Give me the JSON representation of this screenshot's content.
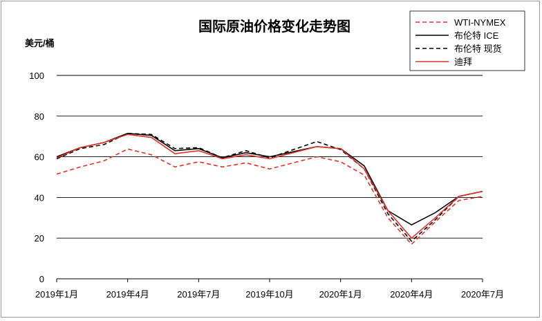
{
  "chart_data": {
    "type": "line",
    "title": "国际原油价格变化走势图",
    "ylabel": "美元/桶",
    "ylim": [
      0,
      100
    ],
    "yticks": [
      0,
      20,
      40,
      60,
      80,
      100
    ],
    "grid": true,
    "legend_position": "top-right",
    "x_ticks": [
      "2019年1月",
      "2019年4月",
      "2019年7月",
      "2019年10月",
      "2020年1月",
      "2020年4月",
      "2020年7月"
    ],
    "x": [
      "2019-01",
      "2019-02",
      "2019-03",
      "2019-04",
      "2019-05",
      "2019-06",
      "2019-07",
      "2019-08",
      "2019-09",
      "2019-10",
      "2019-11",
      "2019-12",
      "2020-01",
      "2020-02",
      "2020-03",
      "2020-04",
      "2020-05",
      "2020-06",
      "2020-07"
    ],
    "series": [
      {
        "name": "WTI-NYMEX",
        "color": "#e0302a",
        "style": "dashed",
        "values": [
          51.5,
          55,
          58,
          63.8,
          61,
          55,
          57.5,
          55,
          57,
          54,
          57,
          60,
          57.5,
          51,
          30,
          17,
          28,
          38.5,
          40.5
        ]
      },
      {
        "name": "布伦特 ICE",
        "color": "#000000",
        "style": "solid",
        "values": [
          60,
          64.5,
          67,
          71.5,
          70.5,
          63,
          64,
          59.5,
          62,
          60,
          62.5,
          65,
          64,
          55.5,
          33.5,
          26.5,
          32.5,
          40.5,
          43
        ]
      },
      {
        "name": "布伦特 现货",
        "color": "#000000",
        "style": "dashed",
        "values": [
          59,
          64,
          66,
          71.5,
          71,
          64,
          64.5,
          59.5,
          63,
          59.5,
          63.5,
          67.5,
          63.5,
          54,
          32,
          18.5,
          29,
          40.5,
          43
        ]
      },
      {
        "name": "迪拜",
        "color": "#e0302a",
        "style": "solid",
        "values": [
          59.5,
          64.5,
          67,
          71,
          69.5,
          61.5,
          63,
          59,
          61,
          59,
          62,
          65,
          64,
          54,
          33.5,
          20,
          30,
          40.5,
          43
        ]
      }
    ]
  }
}
